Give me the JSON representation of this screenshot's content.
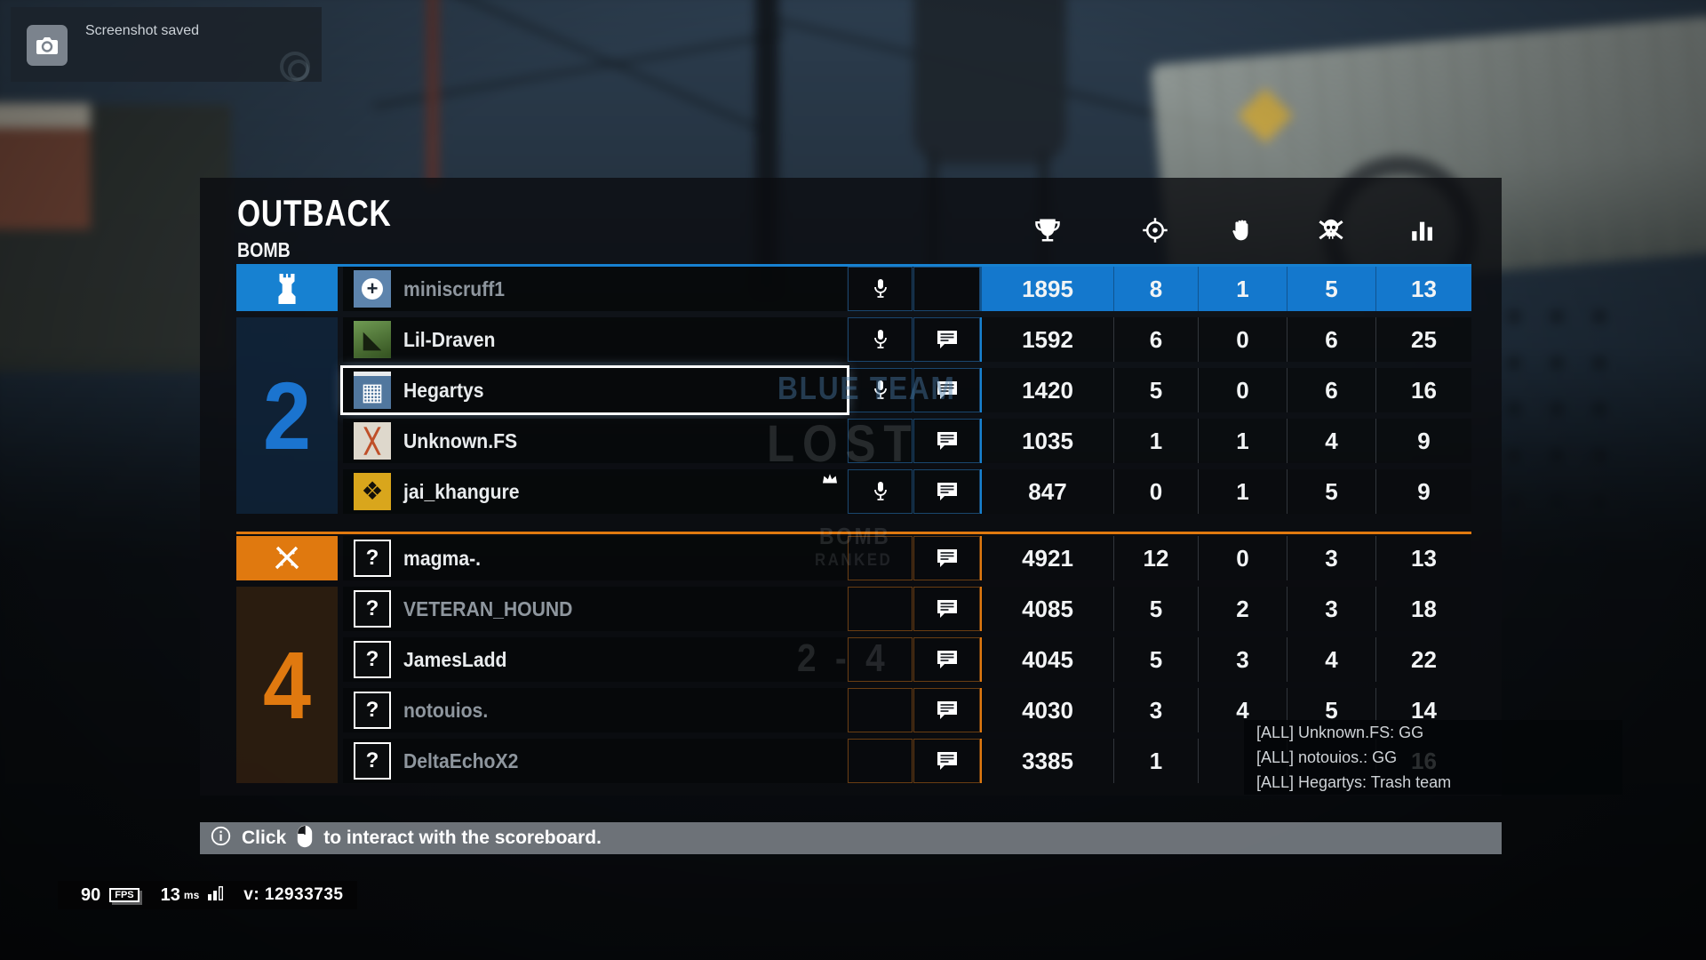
{
  "toast": {
    "message": "Screenshot saved"
  },
  "match": {
    "map": "OUTBACK",
    "mode": "BOMB",
    "watermark": {
      "team": "BLUE TEAM",
      "result": "LOST",
      "mode": "BOMB",
      "playlist": "RANKED",
      "scoreline": "2 - 4"
    }
  },
  "columns": [
    {
      "icon": "trophy-icon",
      "stat": "score"
    },
    {
      "icon": "crosshair-icon",
      "stat": "kills"
    },
    {
      "icon": "hand-icon",
      "stat": "assists"
    },
    {
      "icon": "skull-icon",
      "stat": "deaths"
    },
    {
      "icon": "signal-bars-icon",
      "stat": "ping"
    }
  ],
  "teams": [
    {
      "role": "defenders",
      "rounds_won": "2",
      "accent": "#1781d1",
      "players": [
        {
          "name": "miniscruff1",
          "operator_icon": "doc-operator-icon",
          "score": "1895",
          "kills": "8",
          "assists": "1",
          "deaths": "5",
          "ping": "13",
          "mic": true,
          "chat": false,
          "dim_name": true,
          "stats_highlighted": true
        },
        {
          "name": "Lil-Draven",
          "operator_icon": "caveira-operator-icon",
          "score": "1592",
          "kills": "6",
          "assists": "0",
          "deaths": "6",
          "ping": "25",
          "mic": true,
          "chat": true
        },
        {
          "name": "Hegartys",
          "operator_icon": "rook-operator-icon",
          "score": "1420",
          "kills": "5",
          "assists": "0",
          "deaths": "6",
          "ping": "16",
          "mic": true,
          "chat": true,
          "selected": true
        },
        {
          "name": "Unknown.FS",
          "operator_icon": "fs-operator-icon",
          "score": "1035",
          "kills": "1",
          "assists": "1",
          "deaths": "4",
          "ping": "9",
          "mic": false,
          "chat": true
        },
        {
          "name": "jai_khangure",
          "operator_icon": "moth-operator-icon",
          "score": "847",
          "kills": "0",
          "assists": "1",
          "deaths": "5",
          "ping": "9",
          "mic": true,
          "chat": true,
          "crown": true
        }
      ]
    },
    {
      "role": "attackers",
      "rounds_won": "4",
      "accent": "#e0790f",
      "players": [
        {
          "name": "magma-.",
          "operator_icon": "unknown-operator-icon",
          "score": "4921",
          "kills": "12",
          "assists": "0",
          "deaths": "3",
          "ping": "13",
          "mic": false,
          "chat": true
        },
        {
          "name": "VETERAN_HOUND",
          "operator_icon": "unknown-operator-icon",
          "score": "4085",
          "kills": "5",
          "assists": "2",
          "deaths": "3",
          "ping": "18",
          "mic": false,
          "chat": true,
          "dim_name": true
        },
        {
          "name": "JamesLadd",
          "operator_icon": "unknown-operator-icon",
          "score": "4045",
          "kills": "5",
          "assists": "3",
          "deaths": "4",
          "ping": "22",
          "mic": false,
          "chat": true
        },
        {
          "name": "notouios.",
          "operator_icon": "unknown-operator-icon",
          "score": "4030",
          "kills": "3",
          "assists": "4",
          "deaths": "5",
          "ping": "14",
          "mic": false,
          "chat": true,
          "dim_name": true
        },
        {
          "name": "DeltaEchoX2",
          "operator_icon": "unknown-operator-icon",
          "score": "3385",
          "kills": "1",
          "assists": "",
          "deaths": "",
          "ping": "16",
          "mic": false,
          "chat": true,
          "dim_name": true
        }
      ]
    }
  ],
  "chat": {
    "lines": [
      "[ALL] Unknown.FS: GG",
      "[ALL] notouios.: GG",
      "[ALL] Hegartys: Trash team"
    ]
  },
  "footer": {
    "prefix": "Click",
    "suffix": "to interact with the scoreboard."
  },
  "perf": {
    "fps_value": "90",
    "fps_label": "FPS",
    "latency_value": "13",
    "latency_unit": "ms",
    "version": "v: 12933735"
  }
}
